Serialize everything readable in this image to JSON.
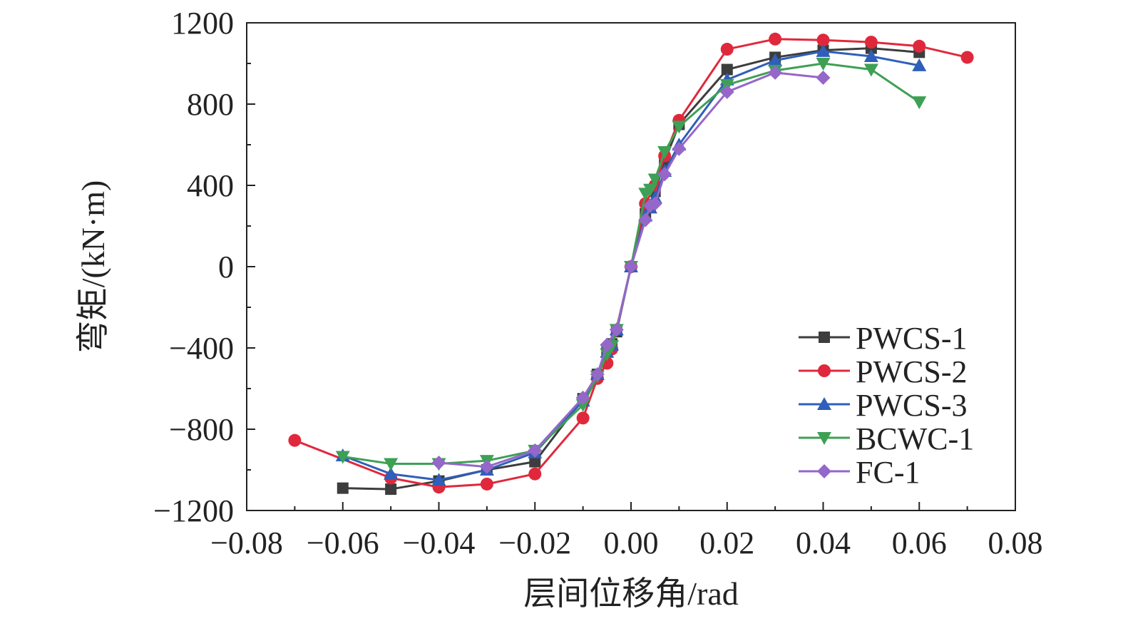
{
  "chart_data": {
    "type": "line",
    "xlabel": "层间位移角/rad",
    "ylabel": "弯矩/(kN·m)",
    "xlim": [
      -0.08,
      0.08
    ],
    "ylim": [
      -1200,
      1200
    ],
    "xticks": [
      -0.08,
      -0.06,
      -0.04,
      -0.02,
      0.0,
      0.02,
      0.04,
      0.06,
      0.08
    ],
    "xtick_labels": [
      "−0.08",
      "−0.06",
      "−0.04",
      "−0.02",
      "0.00",
      "0.02",
      "0.04",
      "0.06",
      "0.08"
    ],
    "yticks": [
      -1200,
      -800,
      -400,
      0,
      400,
      800,
      1200
    ],
    "ytick_labels": [
      "−1200",
      "−800",
      "−400",
      "0",
      "400",
      "800",
      "1200"
    ],
    "grid": false,
    "legend_position": "bottom-right",
    "series": [
      {
        "name": "PWCS-1",
        "color": "#3d3d3d",
        "marker": "square",
        "x": [
          -0.06,
          -0.05,
          -0.04,
          -0.03,
          -0.02,
          -0.01,
          -0.007,
          -0.005,
          -0.004,
          -0.003,
          0,
          0.003,
          0.004,
          0.005,
          0.007,
          0.01,
          0.02,
          0.03,
          0.04,
          0.05,
          0.06
        ],
        "y": [
          -1090,
          -1095,
          -1055,
          -1000,
          -960,
          -650,
          -530,
          -420,
          -380,
          -320,
          0,
          260,
          300,
          370,
          520,
          700,
          970,
          1030,
          1065,
          1075,
          1055
        ]
      },
      {
        "name": "PWCS-2",
        "color": "#e0283c",
        "marker": "circle",
        "x": [
          -0.07,
          -0.05,
          -0.04,
          -0.03,
          -0.02,
          -0.01,
          -0.007,
          -0.005,
          -0.004,
          0,
          0.003,
          0.005,
          0.007,
          0.01,
          0.02,
          0.03,
          0.04,
          0.05,
          0.06,
          0.07
        ],
        "y": [
          -855,
          -1040,
          -1085,
          -1070,
          -1020,
          -745,
          -550,
          -475,
          -405,
          0,
          310,
          400,
          545,
          720,
          1070,
          1120,
          1115,
          1105,
          1085,
          1030
        ]
      },
      {
        "name": "PWCS-3",
        "color": "#2f5fb8",
        "marker": "triangle-up",
        "x": [
          -0.06,
          -0.05,
          -0.04,
          -0.03,
          -0.02,
          -0.01,
          -0.007,
          -0.005,
          -0.004,
          -0.003,
          0,
          0.003,
          0.004,
          0.005,
          0.007,
          0.01,
          0.02,
          0.03,
          0.04,
          0.05,
          0.06
        ],
        "y": [
          -930,
          -1020,
          -1050,
          -1000,
          -915,
          -660,
          -530,
          -420,
          -385,
          -310,
          0,
          250,
          290,
          340,
          470,
          600,
          920,
          1015,
          1060,
          1035,
          990
        ]
      },
      {
        "name": "BCWC-1",
        "color": "#3ea055",
        "marker": "triangle-down",
        "x": [
          -0.06,
          -0.05,
          -0.04,
          -0.03,
          -0.02,
          -0.01,
          -0.007,
          -0.005,
          -0.004,
          -0.003,
          0,
          0.003,
          0.004,
          0.005,
          0.007,
          0.01,
          0.02,
          0.03,
          0.04,
          0.05,
          0.06
        ],
        "y": [
          -935,
          -970,
          -970,
          -955,
          -905,
          -680,
          -540,
          -430,
          -390,
          -310,
          0,
          360,
          380,
          430,
          565,
          690,
          895,
          965,
          1000,
          970,
          810
        ]
      },
      {
        "name": "FC-1",
        "color": "#9467c9",
        "marker": "diamond",
        "x": [
          -0.04,
          -0.03,
          -0.02,
          -0.01,
          -0.007,
          -0.005,
          -0.003,
          0,
          0.003,
          0.004,
          0.005,
          0.007,
          0.01,
          0.02,
          0.03,
          0.04
        ],
        "y": [
          -965,
          -985,
          -905,
          -645,
          -530,
          -385,
          -310,
          0,
          230,
          300,
          310,
          455,
          580,
          860,
          955,
          930
        ]
      }
    ]
  }
}
